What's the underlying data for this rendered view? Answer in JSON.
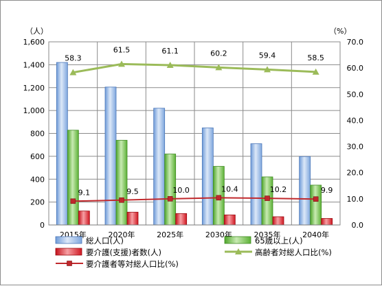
{
  "chart_data": {
    "type": "bar",
    "categories": [
      "2015年",
      "2020年",
      "2025年",
      "2030年",
      "2035年",
      "2040年"
    ],
    "y_left": {
      "unit": "（人）",
      "min": 0,
      "max": 1600,
      "step": 200,
      "ticks": [
        "0",
        "200",
        "400",
        "600",
        "800",
        "1,000",
        "1,200",
        "1,400",
        "1,600"
      ]
    },
    "y_right": {
      "unit": "（%）",
      "min": 0,
      "max": 70,
      "step": 10,
      "ticks": [
        "0.0",
        "10.0",
        "20.0",
        "30.0",
        "40.0",
        "50.0",
        "60.0",
        "70.0"
      ]
    },
    "grid": true,
    "legend_position": "bottom",
    "series": [
      {
        "name": "総人口(人)",
        "kind": "bar",
        "axis": "left",
        "color": "#8eb4e3",
        "values": [
          1420,
          1205,
          1020,
          848,
          710,
          598
        ]
      },
      {
        "name": "65歳以上(人)",
        "kind": "bar",
        "axis": "left",
        "color": "#6cbd45",
        "values": [
          828,
          740,
          620,
          512,
          420,
          348
        ]
      },
      {
        "name": "要介護(支援)者数(人)",
        "kind": "bar",
        "axis": "left",
        "color": "#e0202a",
        "values": [
          122,
          112,
          100,
          88,
          72,
          57
        ]
      },
      {
        "name": "高齢者対総人口比(%)",
        "kind": "line",
        "axis": "right",
        "color": "#9bbb59",
        "values": [
          58.3,
          61.5,
          61.1,
          60.2,
          59.4,
          58.5
        ],
        "labels": [
          "58.3",
          "61.5",
          "61.1",
          "60.2",
          "59.4",
          "58.5"
        ]
      },
      {
        "name": "要介護者等対総人口比(%)",
        "kind": "line",
        "axis": "right",
        "color": "#c0282c",
        "values": [
          9.1,
          9.5,
          10.0,
          10.4,
          10.2,
          9.9
        ],
        "labels": [
          "9.1",
          "9.5",
          "10.0",
          "10.4",
          "10.2",
          "9.9"
        ]
      }
    ]
  }
}
